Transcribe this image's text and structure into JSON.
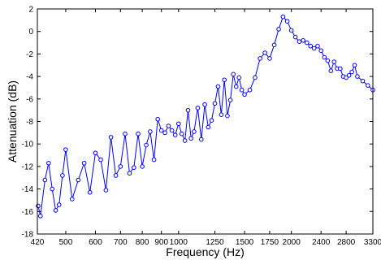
{
  "chart_data": {
    "type": "line",
    "xlabel": "Frequency (Hz)",
    "ylabel": "Attenuation (dB)",
    "x_scale": "log",
    "xlim": [
      420,
      3300
    ],
    "ylim": [
      -18,
      2
    ],
    "grid": false,
    "legend": "none",
    "x_ticks": [
      420,
      500,
      600,
      700,
      800,
      900,
      1000,
      1250,
      1500,
      1750,
      2000,
      2400,
      2800,
      3300
    ],
    "x_tick_labels": [
      "420",
      "500",
      "600",
      "700",
      "800",
      "900",
      "1000",
      "1250",
      "1500",
      "1750",
      "2000",
      "2400",
      "2800",
      "3300"
    ],
    "y_ticks": [
      -18,
      -16,
      -14,
      -12,
      -10,
      -8,
      -6,
      -4,
      -2,
      0,
      2
    ],
    "y_tick_labels": [
      "-18",
      "-16",
      "-14",
      "-12",
      "-10",
      "-8",
      "-6",
      "-4",
      "-2",
      "0",
      "2"
    ],
    "series_color": "#0000ff",
    "marker": "circle",
    "series": [
      {
        "x": [
          422,
          428,
          440,
          450,
          460,
          470,
          480,
          490,
          500,
          520,
          540,
          560,
          580,
          600,
          620,
          640,
          660,
          680,
          700,
          720,
          740,
          760,
          780,
          800,
          820,
          840,
          860,
          880,
          900,
          920,
          940,
          960,
          980,
          1000,
          1020,
          1040,
          1060,
          1080,
          1100,
          1125,
          1150,
          1175,
          1200,
          1225,
          1250,
          1275,
          1300,
          1325,
          1350,
          1375,
          1400,
          1425,
          1450,
          1475,
          1500,
          1550,
          1600,
          1650,
          1700,
          1750,
          1800,
          1850,
          1900,
          1950,
          2000,
          2050,
          2100,
          2150,
          2200,
          2250,
          2300,
          2350,
          2400,
          2450,
          2500,
          2550,
          2600,
          2650,
          2700,
          2750,
          2800,
          2850,
          2900,
          2950,
          3000,
          3100,
          3200,
          3300
        ],
        "y": [
          -15.5,
          -16.4,
          -13.2,
          -11.7,
          -14.0,
          -15.9,
          -15.4,
          -12.8,
          -10.5,
          -14.9,
          -13.2,
          -11.7,
          -14.3,
          -10.8,
          -11.4,
          -14.1,
          -9.4,
          -12.8,
          -12.0,
          -9.1,
          -12.6,
          -12.1,
          -9.1,
          -12.0,
          -10.1,
          -8.9,
          -11.4,
          -7.8,
          -8.8,
          -9.0,
          -8.4,
          -8.8,
          -9.2,
          -8.2,
          -9.1,
          -9.7,
          -7.0,
          -9.5,
          -8.9,
          -6.8,
          -9.6,
          -6.5,
          -8.5,
          -7.9,
          -6.4,
          -4.9,
          -7.4,
          -4.3,
          -7.5,
          -6.1,
          -3.8,
          -4.9,
          -4.1,
          -5.2,
          -5.6,
          -5.2,
          -4.1,
          -2.4,
          -1.9,
          -2.4,
          -1.2,
          0.2,
          1.3,
          0.9,
          0.1,
          -0.5,
          -0.9,
          -0.8,
          -1.0,
          -1.3,
          -1.5,
          -1.3,
          -1.7,
          -2.3,
          -2.6,
          -3.5,
          -2.7,
          -3.3,
          -3.3,
          -4.0,
          -4.1,
          -3.9,
          -3.6,
          -3.0,
          -4.0,
          -4.4,
          -4.8,
          -5.2
        ]
      }
    ]
  }
}
